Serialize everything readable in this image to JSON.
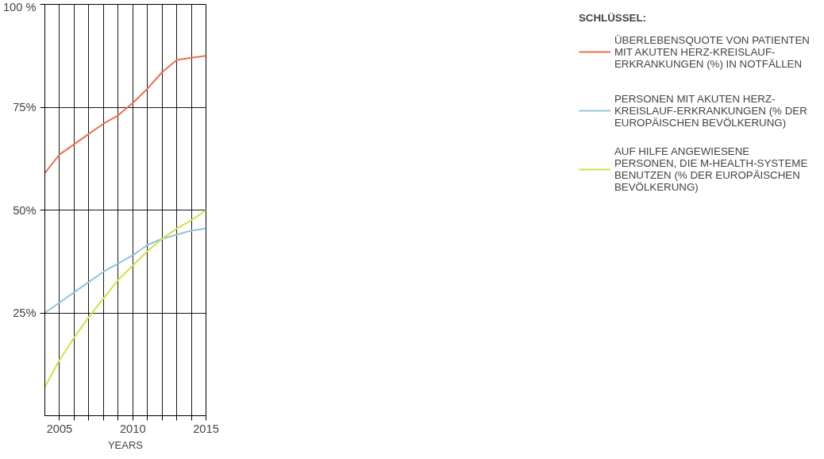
{
  "chart_data": {
    "type": "line",
    "xlabel": "YEARS",
    "legend_title": "SCHLÜSSEL:",
    "legend": "right",
    "grid": true,
    "line_style": "solid",
    "marker": "none",
    "x": [
      2004,
      2005,
      2006,
      2007,
      2008,
      2009,
      2010,
      2011,
      2012,
      2013,
      2014,
      2015
    ],
    "xlim": [
      2004,
      2015
    ],
    "xticks": [
      2005,
      {
        "value": 2006,
        "label": null
      },
      {
        "value": 2007,
        "label": null
      },
      {
        "value": 2008,
        "label": null
      },
      {
        "value": 2009,
        "label": null
      },
      2010,
      {
        "value": 2011,
        "label": null
      },
      {
        "value": 2012,
        "label": null
      },
      {
        "value": 2013,
        "label": null
      },
      {
        "value": 2014,
        "label": null
      },
      2015
    ],
    "ylim": [
      0,
      100
    ],
    "yticks": [
      {
        "value": 25,
        "label": "25%"
      },
      {
        "value": 50,
        "label": "50%"
      },
      {
        "value": 75,
        "label": "75%"
      },
      {
        "value": 100,
        "label": "100 %"
      }
    ],
    "series": [
      {
        "name": "ÜBERLEBENSQUOTE VON PATIENTEN MIT AKUTEN HERZ-KREISLAUF-ERKRANKUNGEN (%) IN NOTFÄLLEN",
        "color": "#e8734a",
        "values": [
          59,
          63.5,
          66,
          68.5,
          71,
          73,
          76,
          79.5,
          83.5,
          86.5,
          87,
          87.5
        ]
      },
      {
        "name": "PERSONEN MIT AKUTEN HERZ-KREISLAUF-ERKRANKUNGEN (% DER EUROPÄISCHEN BEVÖLKERUNG)",
        "color": "#8ec5d9",
        "values": [
          25,
          27.5,
          30,
          32.5,
          35,
          37,
          39,
          41.5,
          43,
          44,
          45,
          45.5
        ]
      },
      {
        "name": "AUF HILFE ANGEWIESENE PERSONEN, DIE M-HEALTH-SYSTEME BENUTZEN (% DER EUROPÄISCHEN BEVÖLKERUNG)",
        "color": "#d4e04a",
        "values": [
          7,
          13.5,
          19,
          24,
          28.5,
          33,
          36.5,
          40,
          43,
          45.5,
          47.5,
          50
        ]
      }
    ]
  }
}
